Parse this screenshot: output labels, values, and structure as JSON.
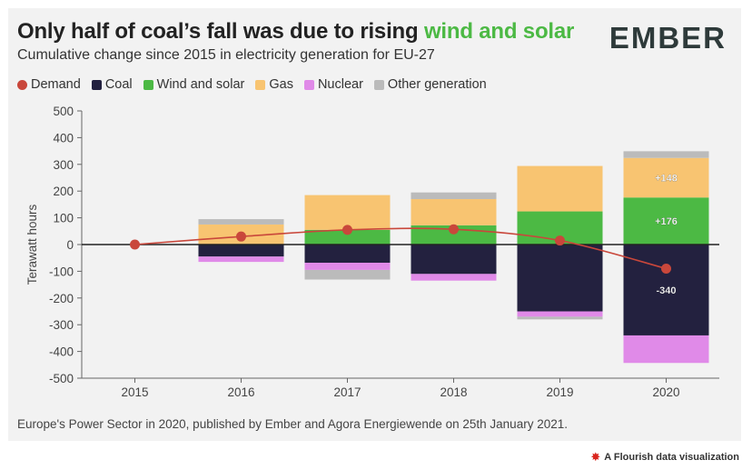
{
  "title_main": "Only half of coal’s fall was due to rising",
  "title_highlight": "wind and solar",
  "subtitle": "Cumulative change since 2015 in electricity generation for EU-27",
  "logo": "EMBER",
  "source": "Europe's Power Sector in 2020, published by Ember and Agora Energiewende on 25th January 2021.",
  "flourish_credit": "A Flourish data visualization",
  "legend": [
    {
      "label": "Demand",
      "color": "#c9473b",
      "shape": "circle"
    },
    {
      "label": "Coal",
      "color": "#23213f",
      "shape": "square"
    },
    {
      "label": "Wind and solar",
      "color": "#4cb944",
      "shape": "square"
    },
    {
      "label": "Gas",
      "color": "#f8c471",
      "shape": "square"
    },
    {
      "label": "Nuclear",
      "color": "#e08ae8",
      "shape": "square"
    },
    {
      "label": "Other generation",
      "color": "#bbbbbb",
      "shape": "square"
    }
  ],
  "chart_data": {
    "type": "bar",
    "stacked": true,
    "title": "Only half of coal’s fall was due to rising wind and solar",
    "ylabel": "Terawatt hours",
    "xlabel": "",
    "ylim": [
      -500,
      500
    ],
    "yticks": [
      500,
      400,
      300,
      200,
      100,
      0,
      -100,
      -200,
      -300,
      -400,
      -500
    ],
    "categories": [
      "2015",
      "2016",
      "2017",
      "2018",
      "2019",
      "2020"
    ],
    "series": [
      {
        "name": "Wind and solar",
        "color": "#4cb944",
        "values": [
          0,
          0,
          55,
          72,
          124,
          176
        ]
      },
      {
        "name": "Gas",
        "color": "#f8c471",
        "values": [
          0,
          75,
          130,
          98,
          170,
          148
        ]
      },
      {
        "name": "Other generation",
        "color": "#bbbbbb",
        "values": [
          0,
          20,
          0,
          25,
          0,
          25
        ]
      },
      {
        "name": "Coal",
        "color": "#23213f",
        "values": [
          0,
          -45,
          -68,
          -110,
          -250,
          -340
        ]
      },
      {
        "name": "Nuclear",
        "color": "#e08ae8",
        "values": [
          0,
          -20,
          -27,
          -25,
          -20,
          -103
        ]
      },
      {
        "name": "Other generation (negative)",
        "color": "#bbbbbb",
        "values": [
          0,
          0,
          -36,
          0,
          -10,
          0
        ]
      }
    ],
    "line": {
      "name": "Demand",
      "color": "#c9473b",
      "values": [
        0,
        30,
        55,
        57,
        15,
        -90
      ]
    },
    "annotations": [
      {
        "category": "2020",
        "series": "Gas",
        "text": "+148"
      },
      {
        "category": "2020",
        "series": "Wind and solar",
        "text": "+176"
      },
      {
        "category": "2020",
        "series": "Coal",
        "text": "-340"
      }
    ]
  }
}
